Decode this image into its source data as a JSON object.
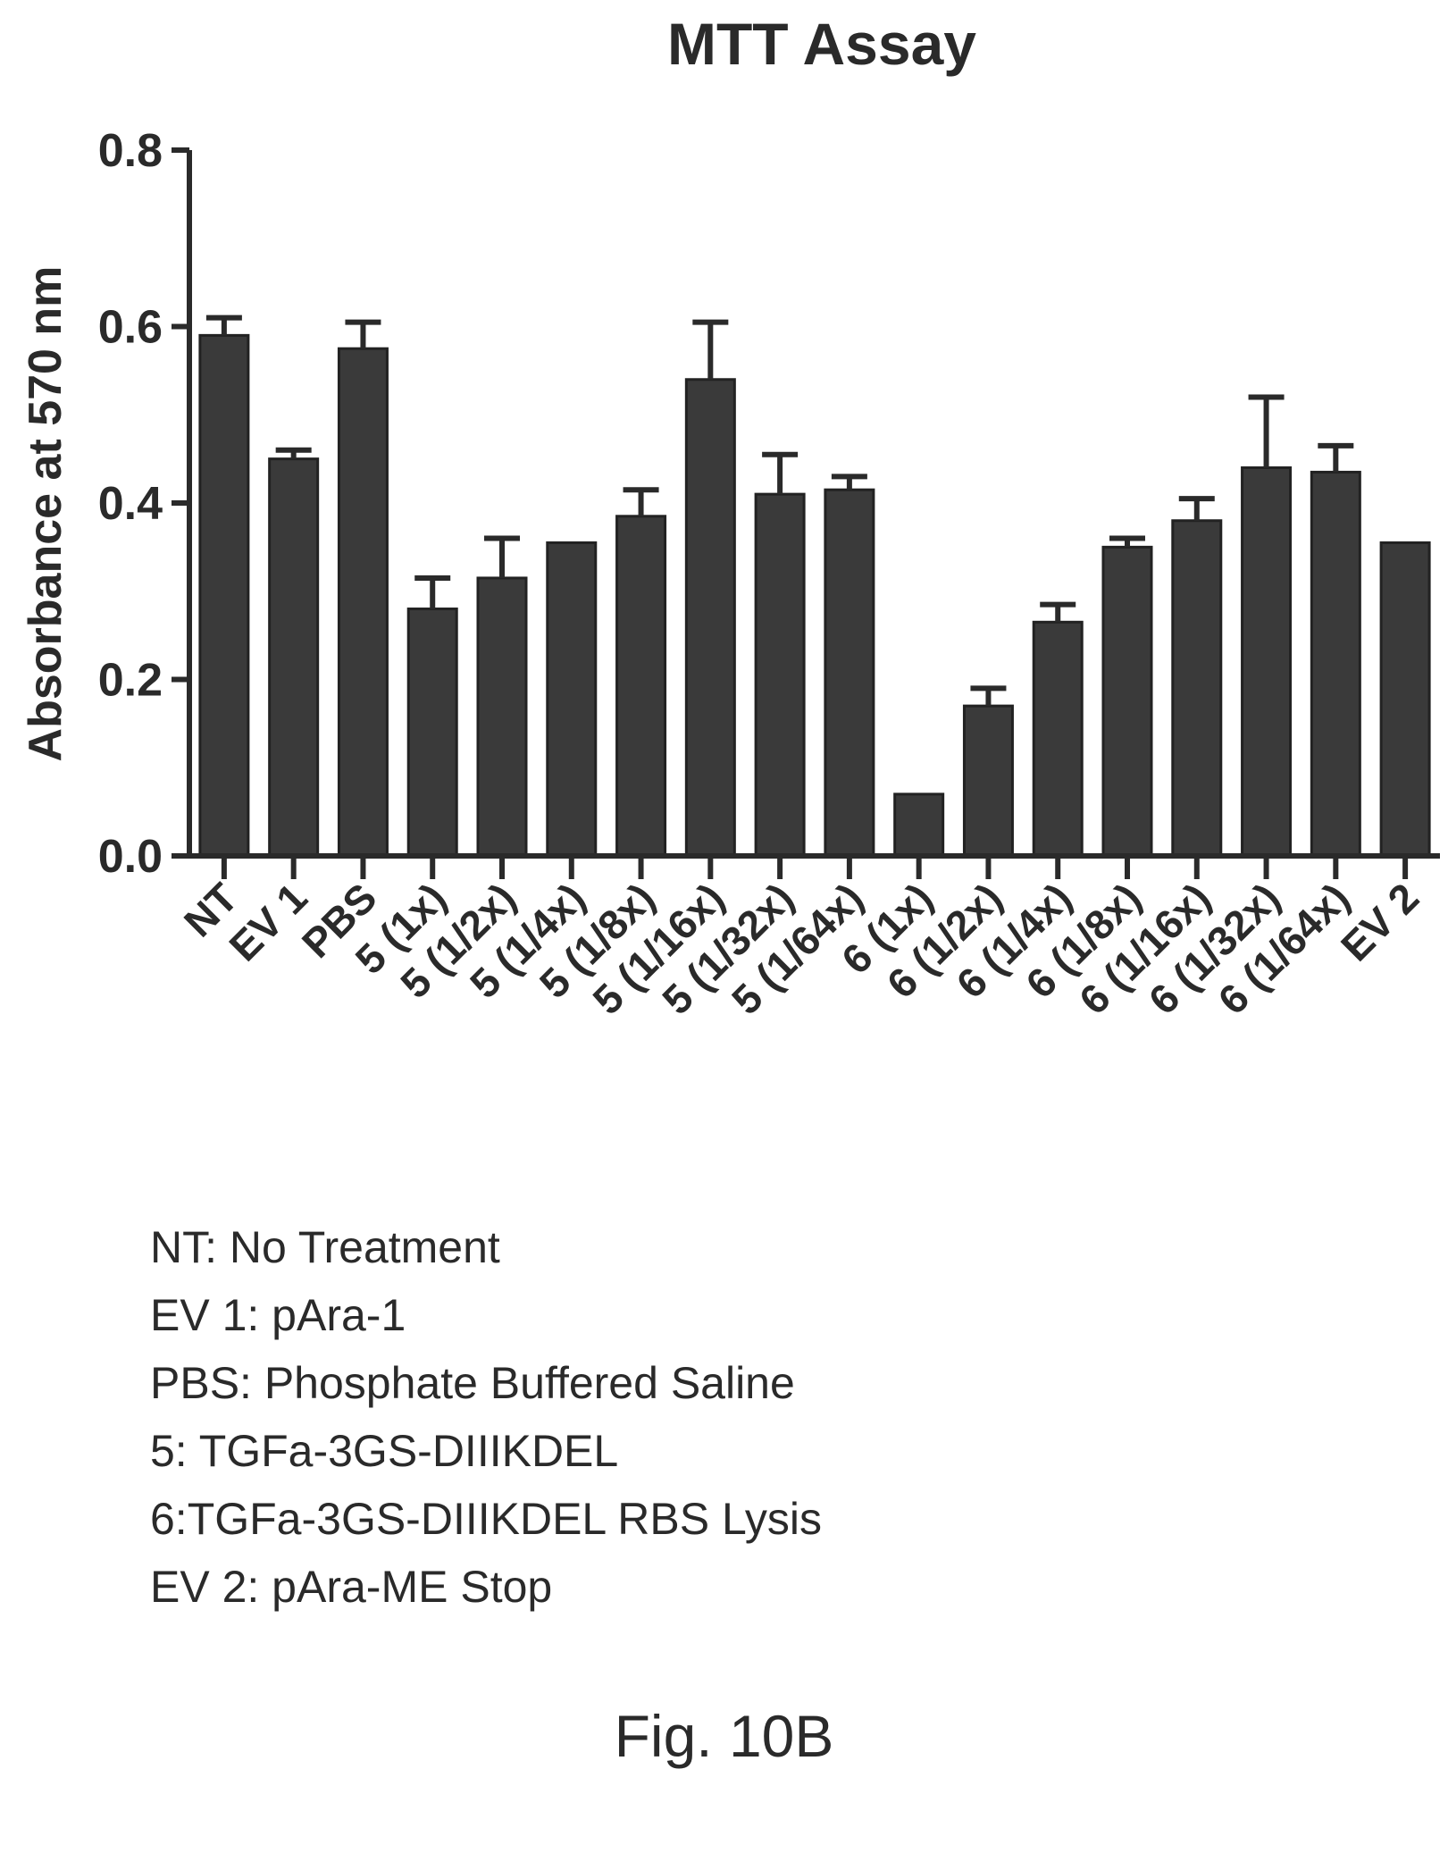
{
  "chart_data": {
    "type": "bar",
    "title": "MTT Assay",
    "ylabel": "Absorbance at 570 nm",
    "xlabel": "",
    "ylim": [
      0,
      0.8
    ],
    "yticks": [
      "0.0",
      "0.2",
      "0.4",
      "0.6",
      "0.8"
    ],
    "categories": [
      "NT",
      "EV 1",
      "PBS",
      "5 (1x)",
      "5 (1/2x)",
      "5 (1/4x)",
      "5 (1/8x)",
      "5 (1/16x)",
      "5 (1/32x)",
      "5 (1/64x)",
      "6 (1x)",
      "6 (1/2x)",
      "6 (1/4x)",
      "6 (1/8x)",
      "6 (1/16x)",
      "6 (1/32x)",
      "6 (1/64x)",
      "EV 2"
    ],
    "values": [
      0.59,
      0.45,
      0.575,
      0.28,
      0.315,
      0.355,
      0.385,
      0.54,
      0.41,
      0.415,
      0.07,
      0.17,
      0.265,
      0.35,
      0.38,
      0.44,
      0.435,
      0.355
    ],
    "errors": [
      0.02,
      0.01,
      0.03,
      0.035,
      0.045,
      0.0,
      0.03,
      0.065,
      0.045,
      0.015,
      0.0,
      0.02,
      0.02,
      0.01,
      0.025,
      0.08,
      0.03,
      0.0
    ],
    "bar_color": "#3a3a3a",
    "grid": false
  },
  "legend": [
    "NT: No Treatment",
    "EV 1: pAra-1",
    "PBS: Phosphate Buffered Saline",
    "5: TGFa-3GS-DIIIKDEL",
    "6:TGFa-3GS-DIIIKDEL RBS Lysis",
    "EV 2: pAra-ME Stop"
  ],
  "figure_label": "Fig. 10B"
}
